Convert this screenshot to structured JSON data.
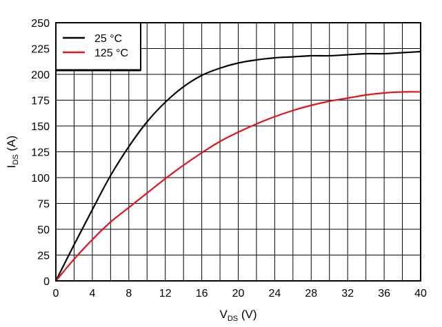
{
  "chart_data": {
    "type": "line",
    "xlabel": {
      "main": "V",
      "sub": "DS",
      "unit": " (V)"
    },
    "ylabel": {
      "main": "I",
      "sub": "DS",
      "unit": " (A)"
    },
    "xlim": [
      0,
      40
    ],
    "ylim": [
      0,
      250
    ],
    "xticks": [
      0,
      4,
      8,
      12,
      16,
      20,
      24,
      28,
      32,
      36,
      40
    ],
    "yticks": [
      0,
      25,
      50,
      75,
      100,
      125,
      150,
      175,
      200,
      225,
      250
    ],
    "x_minor_step": 2,
    "grid": true,
    "legend_position": "top-left",
    "series": [
      {
        "name": "25 °C",
        "color": "#000000",
        "x": [
          0,
          2,
          4,
          6,
          8,
          10,
          12,
          14,
          16,
          18,
          20,
          22,
          24,
          26,
          28,
          30,
          32,
          34,
          36,
          38,
          40
        ],
        "y": [
          0,
          35,
          69,
          102,
          130,
          154,
          173,
          188,
          199,
          206,
          211,
          214,
          216,
          217,
          218,
          218,
          219,
          220,
          220,
          221,
          222
        ]
      },
      {
        "name": "125 °C",
        "color": "#e8101a",
        "x": [
          0,
          2,
          4,
          6,
          8,
          10,
          12,
          14,
          16,
          18,
          20,
          22,
          24,
          26,
          28,
          30,
          32,
          34,
          36,
          38,
          40
        ],
        "y": [
          0,
          21,
          40,
          57,
          71,
          85,
          99,
          112,
          124,
          135,
          144,
          152,
          159,
          165,
          170,
          174,
          177,
          180,
          182,
          183,
          183
        ]
      }
    ]
  }
}
